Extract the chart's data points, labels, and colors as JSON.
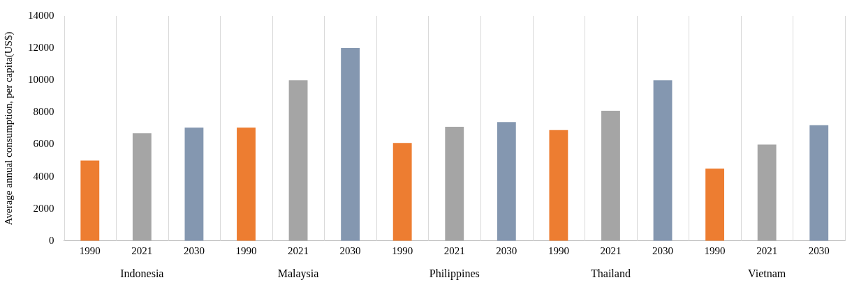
{
  "chart_data": {
    "type": "bar",
    "ylabel": "Average annual consumption, per capita(US$)",
    "categories": [
      "Indonesia",
      "Malaysia",
      "Philippines",
      "Thailand",
      "Vietnam"
    ],
    "series": [
      {
        "name": "1990",
        "color": "#ed7d31",
        "values": [
          5000,
          7050,
          6100,
          6900,
          4500
        ]
      },
      {
        "name": "2021",
        "color": "#a5a5a5",
        "values": [
          6700,
          10000,
          7100,
          8100,
          6000
        ]
      },
      {
        "name": "2030",
        "color": "#8497b0",
        "values": [
          7050,
          12000,
          7400,
          10000,
          7200
        ]
      }
    ],
    "ylim": [
      0,
      14000
    ],
    "yticks": [
      0,
      2000,
      4000,
      6000,
      8000,
      10000,
      12000,
      14000
    ],
    "grid": "x",
    "legend": false
  }
}
